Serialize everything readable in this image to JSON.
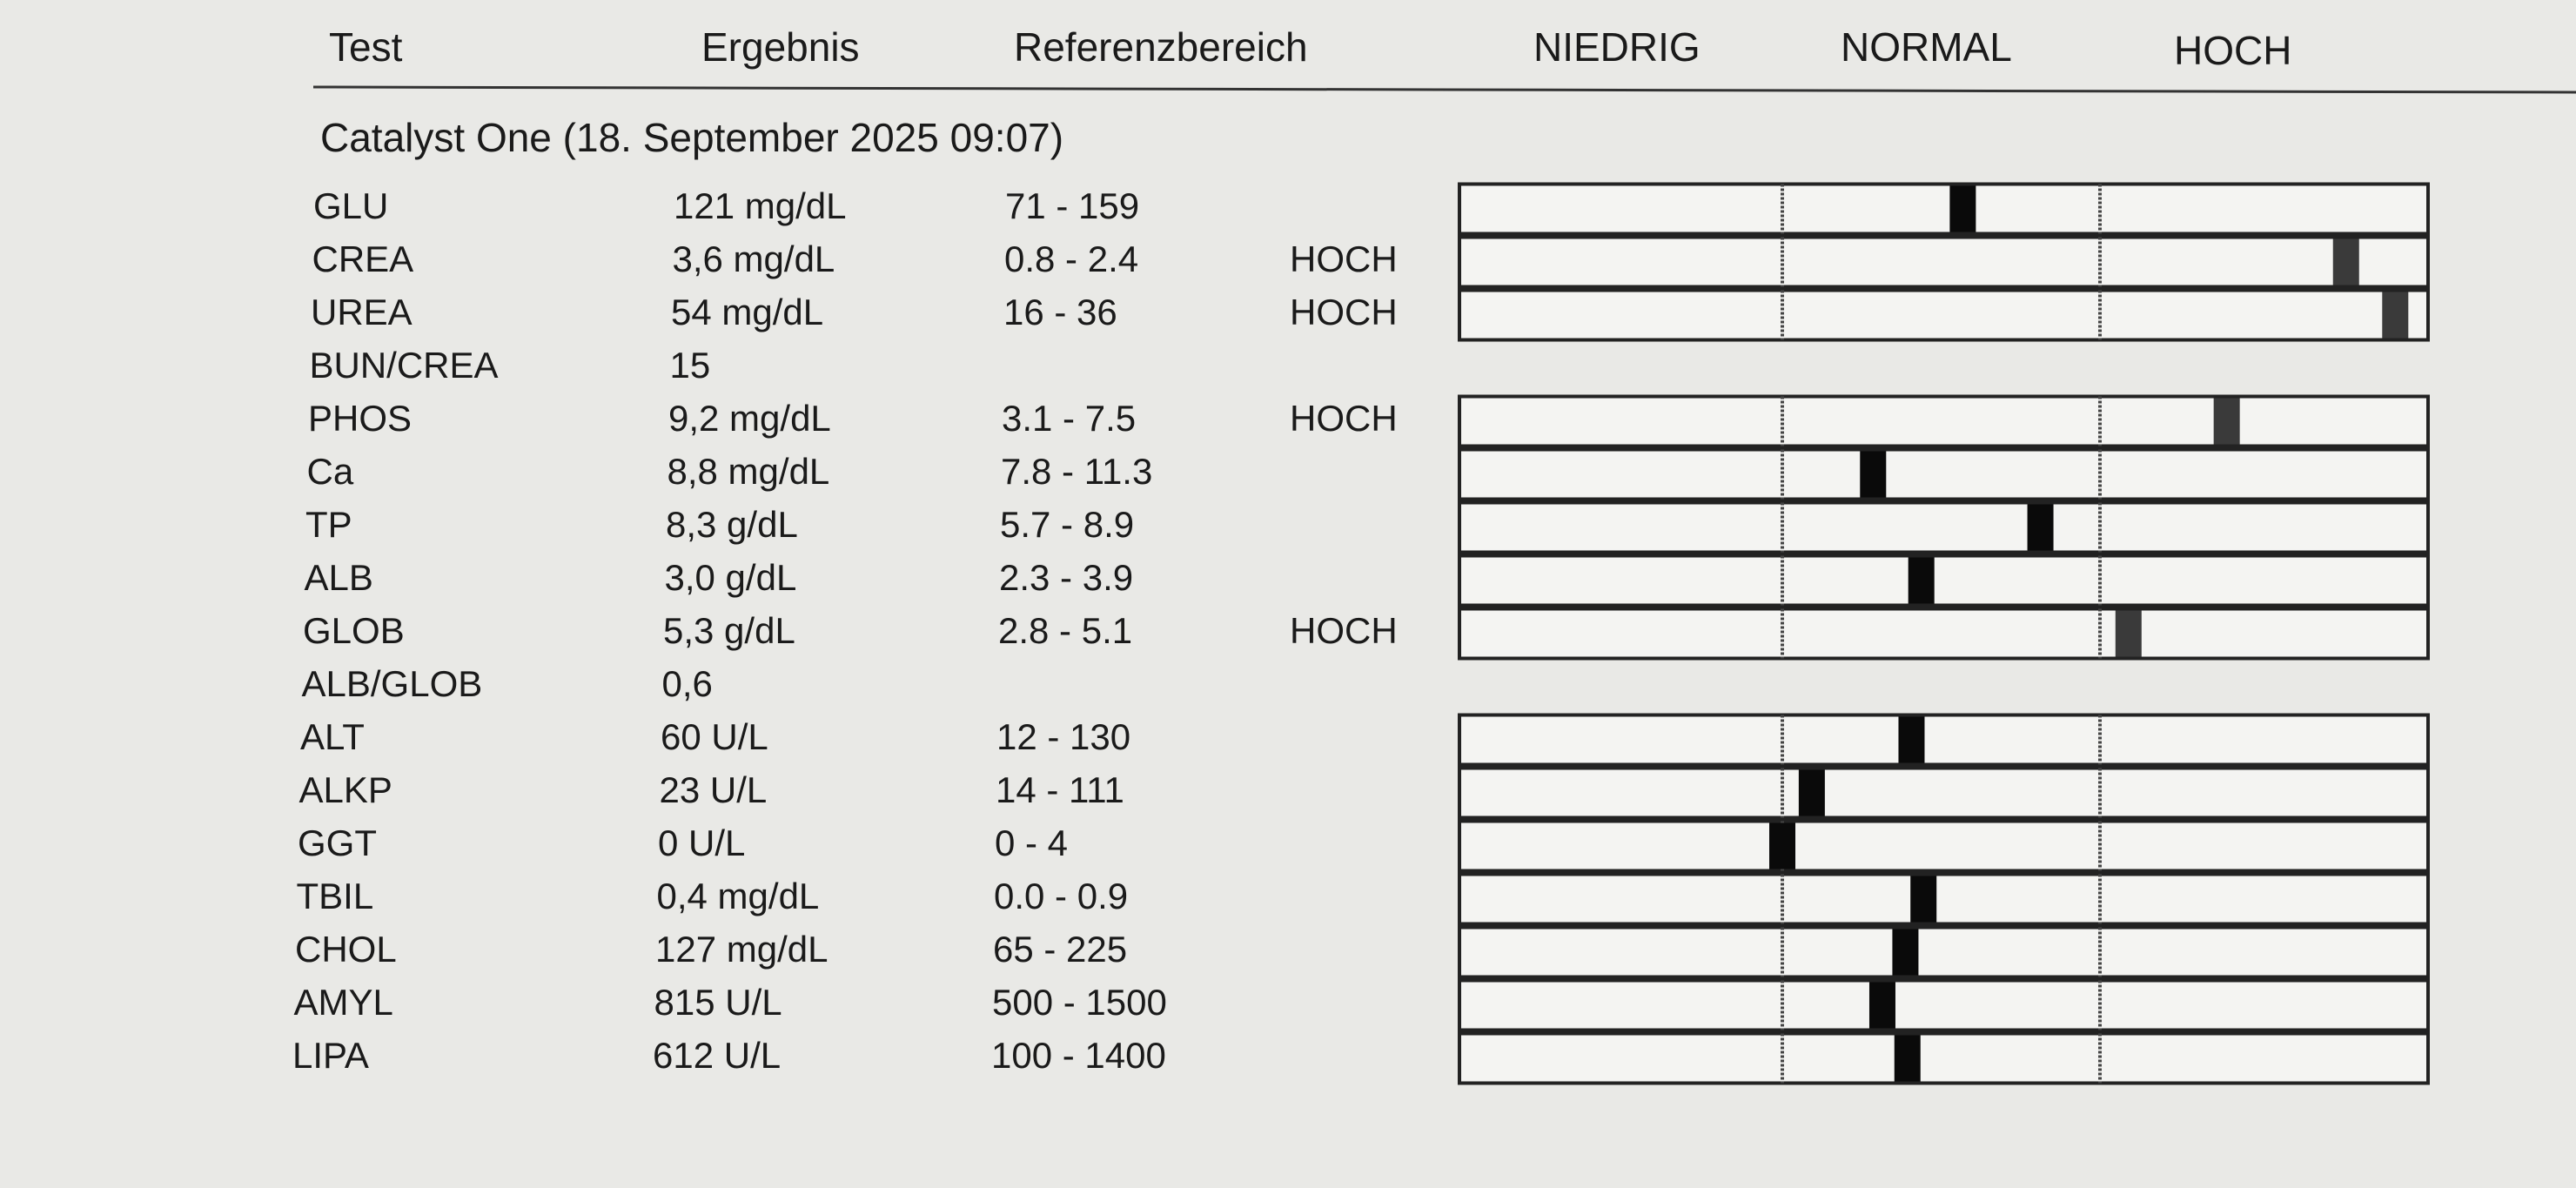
{
  "header": {
    "columns": [
      "Test",
      "Ergebnis",
      "Referenzbereich",
      "NIEDRIG",
      "NORMAL",
      "HOCH"
    ]
  },
  "section": {
    "title": "Catalyst One (18. September 2025 09:07)"
  },
  "rows": [
    {
      "test": "GLU",
      "result": {
        "value": 121,
        "label": "121 mg/dL"
      },
      "range": {
        "low": 71,
        "high": 159,
        "label": "71 - 159"
      }
    },
    {
      "test": "CREA",
      "result": {
        "value": 3.6,
        "label": "3,6 mg/dL"
      },
      "range": {
        "low": 0.8,
        "high": 2.4,
        "label": "0.8 - 2.4"
      },
      "flag": "HOCH"
    },
    {
      "test": "UREA",
      "result": {
        "value": 54,
        "label": "54 mg/dL"
      },
      "range": {
        "low": 16,
        "high": 36,
        "label": "16 - 36"
      },
      "flag": "HOCH"
    },
    {
      "test": "BUN/CREA",
      "result": 15
    },
    {
      "test": "PHOS",
      "result": {
        "value": 9.2,
        "label": "9,2 mg/dL"
      },
      "range": {
        "low": 3.1,
        "high": 7.5,
        "label": "3.1 - 7.5"
      },
      "flag": "HOCH"
    },
    {
      "test": "Ca",
      "result": {
        "value": 8.8,
        "label": "8,8 mg/dL"
      },
      "range": {
        "low": 7.8,
        "high": 11.3,
        "label": "7.8 - 11.3"
      }
    },
    {
      "test": "TP",
      "result": {
        "value": 8.3,
        "label": "8,3 g/dL"
      },
      "range": {
        "low": 5.7,
        "high": 8.9,
        "label": "5.7 - 8.9"
      }
    },
    {
      "test": "ALB",
      "result": {
        "value": 3.0,
        "label": "3,0 g/dL"
      },
      "range": {
        "low": 2.3,
        "high": 3.9,
        "label": "2.3 - 3.9"
      }
    },
    {
      "test": "GLOB",
      "result": {
        "value": 5.3,
        "label": "5,3 g/dL"
      },
      "range": {
        "low": 2.8,
        "high": 5.1,
        "label": "2.8 - 5.1"
      },
      "flag": "HOCH"
    },
    {
      "test": "ALB/GLOB",
      "result": {
        "value": 0.6,
        "label": "0,6"
      }
    },
    {
      "test": "ALT",
      "result": {
        "value": 60,
        "label": "60 U/L"
      },
      "range": {
        "low": 12,
        "high": 130,
        "label": "12 - 130"
      }
    },
    {
      "test": "ALKP",
      "result": {
        "value": 23,
        "label": "23 U/L"
      },
      "range": {
        "low": 14,
        "high": 111,
        "label": "14 - 111"
      }
    },
    {
      "test": "GGT",
      "result": {
        "value": 0,
        "label": "0 U/L"
      },
      "range": {
        "low": 0,
        "high": 4,
        "label": "0 - 4"
      }
    },
    {
      "test": "TBIL",
      "result": {
        "value": 0.4,
        "label": "0,4 mg/dL"
      },
      "range": {
        "low": 0.0,
        "high": 0.9,
        "label": "0.0 - 0.9"
      }
    },
    {
      "test": "CHOL",
      "result": {
        "value": 127,
        "label": "127 mg/dL"
      },
      "range": {
        "low": 65,
        "high": 225,
        "label": "65 - 225"
      }
    },
    {
      "test": "AMYL",
      "result": {
        "value": 815,
        "label": "815 U/L"
      },
      "range": {
        "low": 500,
        "high": 1500,
        "label": "500 - 1500"
      }
    },
    {
      "test": "LIPA",
      "result": {
        "value": 612,
        "label": "612 U/L"
      },
      "range": {
        "low": 100,
        "high": 1400,
        "label": "100 - 1400"
      }
    }
  ]
}
